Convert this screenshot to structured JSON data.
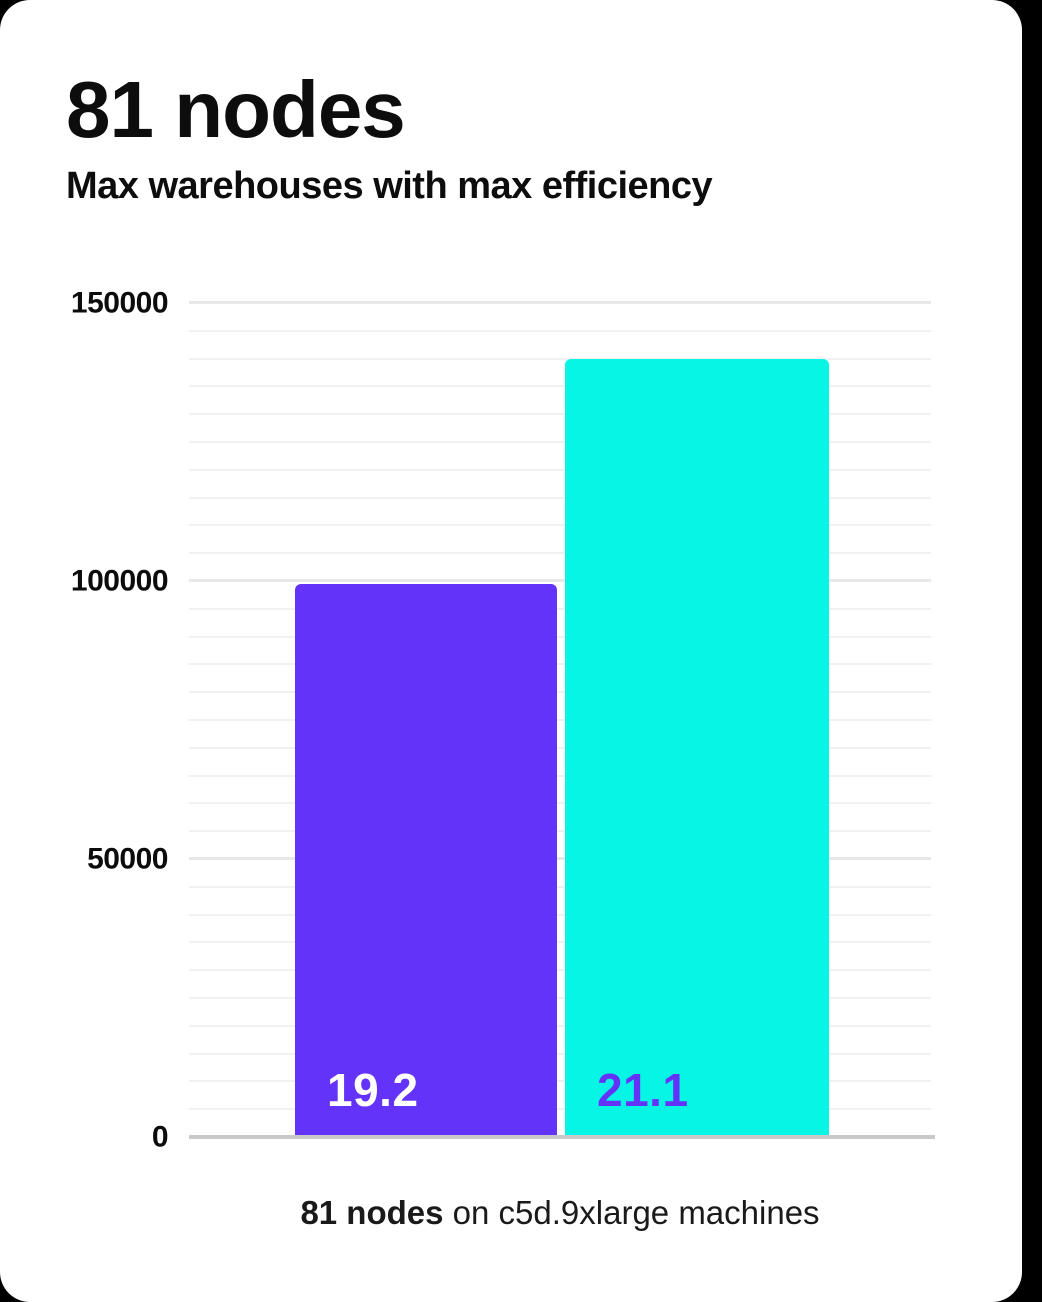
{
  "header": {
    "title": "81 nodes",
    "subtitle": "Max warehouses with max efficiency"
  },
  "caption": {
    "bold": "81 nodes",
    "rest": " on c5d.9xlarge machines"
  },
  "chart_data": {
    "type": "bar",
    "title": "81 nodes",
    "subtitle": "Max warehouses with max efficiency",
    "categories": [
      "19.2",
      "21.1"
    ],
    "values": [
      99500,
      140000
    ],
    "bars": [
      {
        "label": "19.2",
        "value": 99500,
        "color": "#6433fa",
        "label_color": "#ffffff"
      },
      {
        "label": "21.1",
        "value": 140000,
        "color": "#07f5e4",
        "label_color": "#6433fa"
      }
    ],
    "xlabel": "",
    "ylabel": "",
    "ylim": [
      0,
      150000
    ],
    "yticks": [
      {
        "value": 0,
        "label": "0"
      },
      {
        "value": 50000,
        "label": "50000"
      },
      {
        "value": 100000,
        "label": "100000"
      },
      {
        "value": 150000,
        "label": "150000"
      }
    ],
    "minor_gridline_step": 5000,
    "grid": true,
    "legend_position": "none",
    "caption": "81 nodes on c5d.9xlarge machines",
    "colors": {
      "bar_primary": "#6433fa",
      "bar_secondary": "#07f5e4",
      "axis_line": "#c9c9c9",
      "gridline_minor": "#f1f1f1",
      "gridline_major": "#e8e8e8",
      "text": "#0d0d0d",
      "card_background": "#ffffff",
      "page_background": "#000000"
    }
  }
}
